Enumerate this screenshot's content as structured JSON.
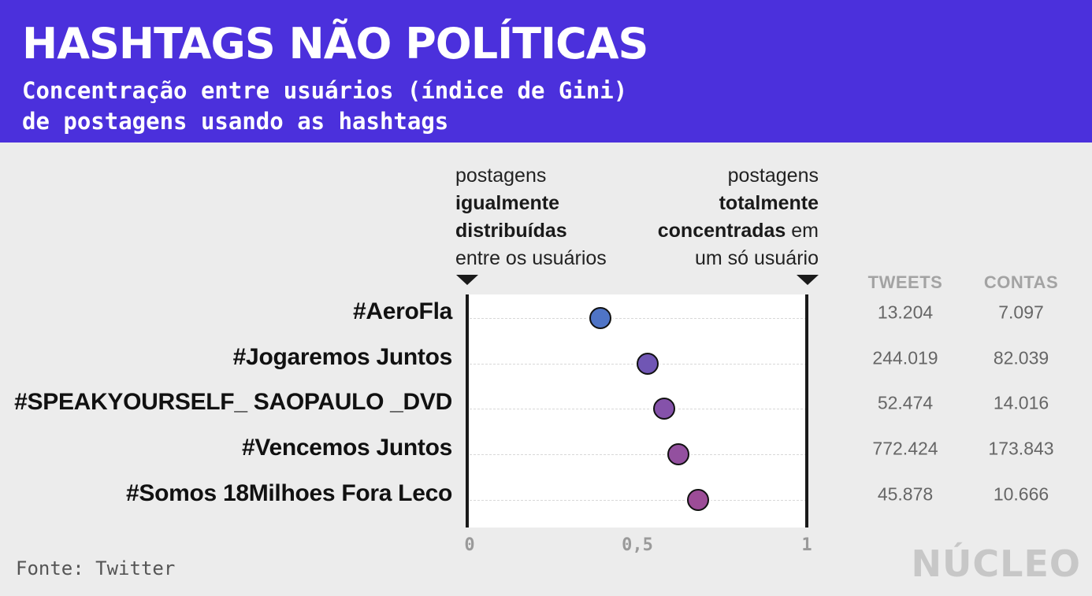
{
  "header": {
    "title": "HASHTAGS NÃO POLÍTICAS",
    "subtitle_line1": "Concentração entre usuários (índice de Gini)",
    "subtitle_line2": "de postagens usando as hashtags",
    "background_color": "#4b30dc"
  },
  "notes": {
    "left": {
      "line1": "postagens",
      "line2": "igualmente",
      "line3": "distribuídas",
      "line4": "entre os usuários"
    },
    "right": {
      "line1": "postagens",
      "line2": "totalmente",
      "line3_bold": "concentradas",
      "line3_rest": " em",
      "line4": "um só usuário"
    }
  },
  "columns": {
    "tweets": "TWEETS",
    "contas": "CONTAS"
  },
  "chart_data": {
    "type": "scatter",
    "title": "HASHTAGS NÃO POLÍTICAS",
    "subtitle": "Concentração entre usuários (índice de Gini) de postagens usando as hashtags",
    "xlim": [
      0,
      1
    ],
    "x_ticks": [
      "0",
      "0,5",
      "1"
    ],
    "grid": "horizontal dashed",
    "categories": [
      "#AeroFla",
      "#Jogaremos Juntos",
      "#SPEAKYOURSELF_ SAOPAULO _DVD",
      "#Vencemos Juntos",
      "#Somos 18Milhoes Fora Leco"
    ],
    "values": [
      0.39,
      0.53,
      0.58,
      0.62,
      0.68
    ],
    "point_colors": [
      "#4f74c6",
      "#7056b4",
      "#8552aa",
      "#93509f",
      "#9c4c97"
    ],
    "tweets": [
      "13.204",
      "244.019",
      "52.474",
      "772.424",
      "45.878"
    ],
    "contas": [
      "7.097",
      "82.039",
      "14.016",
      "173.843",
      "10.666"
    ]
  },
  "footer": {
    "source": "Fonte: Twitter",
    "logo": "NÚCLEO"
  }
}
